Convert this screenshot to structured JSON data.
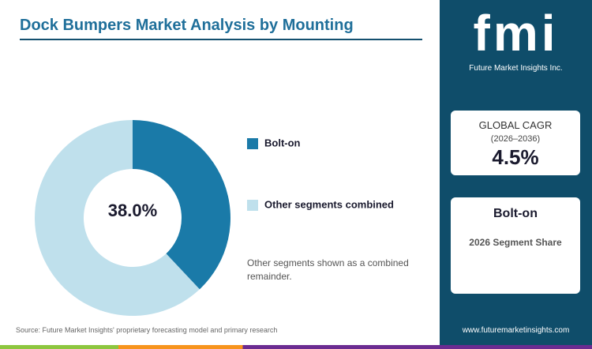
{
  "chart_data": {
    "type": "donut",
    "title": "Dock Bumpers Market Analysis by Mounting",
    "categories": [
      "Bolt-on",
      "Other segments combined"
    ],
    "values": [
      38.0,
      62.0
    ],
    "value_labels": [
      "38.0%",
      null
    ],
    "colors": [
      "#1a7aa8",
      "#bfe0ec"
    ],
    "note": "Other segments shown as a combined remainder."
  },
  "source": "Source: Future Market Insights' proprietary forecasting model and primary research",
  "sidebar": {
    "logo": "fmi",
    "logo_subtitle": "Future Market Insights Inc.",
    "cagr_label": "GLOBAL CAGR",
    "cagr_period": "(2026–2036)",
    "cagr_value": "4.5%",
    "segment": "Bolt-on",
    "segment_caption": "2026 Segment Share",
    "url": "www.futuremarketinsights.com"
  }
}
